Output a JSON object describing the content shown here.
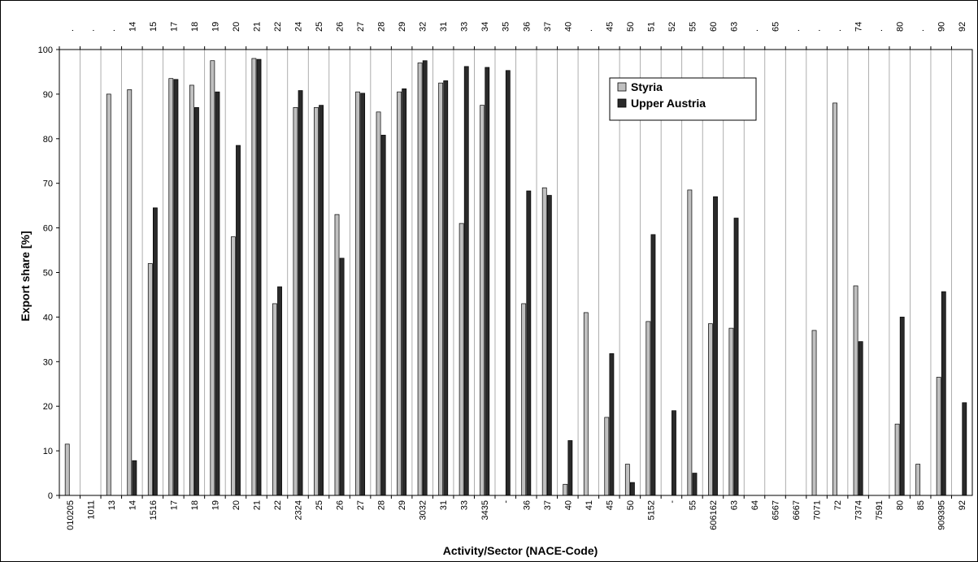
{
  "chart_data": {
    "type": "bar",
    "xlabel": "Activity/Sector (NACE-Code)",
    "ylabel": "Export share [%]",
    "ylim": [
      0,
      100
    ],
    "yticks": [
      0,
      10,
      20,
      30,
      40,
      50,
      60,
      70,
      80,
      90,
      100
    ],
    "grid": "vertical lines between categories",
    "legend_position": "upper-middle-right",
    "categories": [
      "010205",
      "1011",
      "13",
      "14",
      "1516",
      "17",
      "18",
      "19",
      "20",
      "21",
      "22",
      "2324",
      "25",
      "26",
      "27",
      "28",
      "29",
      "3032",
      "31",
      "33",
      "3435",
      "-",
      "36",
      "37",
      "40",
      "41",
      "45",
      "50",
      "5152",
      "-",
      "55",
      "606162",
      "63",
      "64",
      "6567",
      "6667",
      "7071",
      "72",
      "7374",
      "7591",
      "80",
      "85",
      "909395",
      "92"
    ],
    "top_labels": [
      ".",
      ".",
      ".",
      "14",
      "15",
      "17",
      "18",
      "19",
      "20",
      "21",
      "22",
      "24",
      "25",
      "26",
      "27",
      "28",
      "29",
      "32",
      "31",
      "33",
      "34",
      "35",
      "36",
      "37",
      "40",
      ".",
      "45",
      "50",
      "51",
      "52",
      "55",
      "60",
      "63",
      ".",
      "65",
      ".",
      ".",
      ".",
      "74",
      ".",
      "80",
      ".",
      "90",
      "92"
    ],
    "series": [
      {
        "name": "Styria",
        "color": "#c0c0c0",
        "values": [
          11.5,
          null,
          90,
          91,
          52,
          93.5,
          92,
          97.5,
          58,
          98,
          43,
          87,
          87,
          63,
          90.5,
          86,
          90.5,
          97,
          92.5,
          61,
          87.5,
          null,
          43,
          69,
          2.5,
          41,
          17.5,
          7,
          39,
          null,
          68.5,
          38.5,
          37.5,
          null,
          null,
          null,
          37,
          88,
          47,
          null,
          16,
          7,
          26.5,
          null
        ]
      },
      {
        "name": "Upper Austria",
        "color": "#2a2a2a",
        "values": [
          null,
          null,
          null,
          7.8,
          64.5,
          93.3,
          87,
          90.5,
          78.5,
          97.8,
          46.8,
          90.8,
          87.5,
          53.2,
          90.2,
          80.8,
          91.2,
          97.5,
          93,
          96.2,
          96,
          95.3,
          68.3,
          67.3,
          12.3,
          null,
          31.8,
          2.9,
          58.5,
          19,
          5,
          67,
          62.2,
          null,
          null,
          null,
          null,
          null,
          34.5,
          null,
          40,
          null,
          45.7,
          20.8
        ]
      }
    ]
  }
}
